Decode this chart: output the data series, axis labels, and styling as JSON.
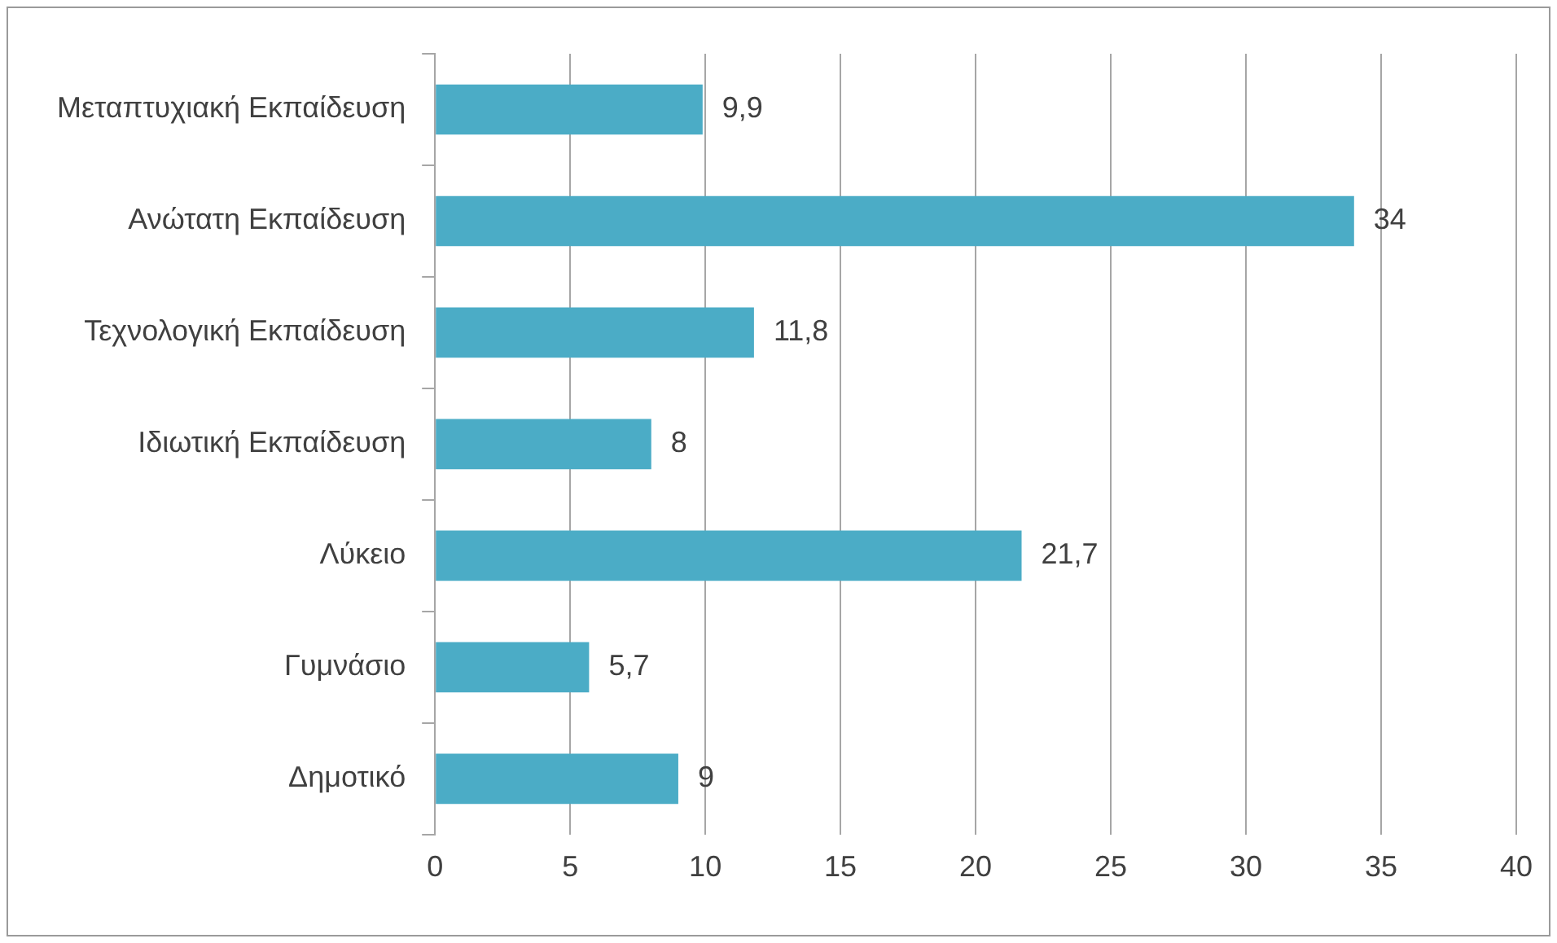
{
  "chart_data": {
    "type": "bar",
    "orientation": "horizontal",
    "categories": [
      "Μεταπτυχιακή Εκπαίδευση",
      "Ανώτατη Εκπαίδευση",
      "Τεχνολογική Εκπαίδευση",
      "Ιδιωτική Εκπαίδευση",
      "Λύκειο",
      "Γυμνάσιο",
      "Δημοτικό"
    ],
    "values": [
      9.9,
      34,
      11.8,
      8,
      21.7,
      5.7,
      9
    ],
    "value_labels": [
      "9,9",
      "34",
      "11,8",
      "8",
      "21,7",
      "5,7",
      "9"
    ],
    "color": "#4bacc6",
    "xlim": [
      0,
      40
    ],
    "xticks": [
      0,
      5,
      10,
      15,
      20,
      25,
      30,
      35,
      40
    ],
    "grid": "x",
    "legend": false
  }
}
